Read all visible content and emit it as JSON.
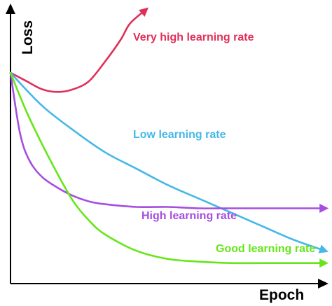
{
  "chart_data": {
    "type": "line",
    "title": "",
    "xlabel": "Epoch",
    "ylabel": "Loss",
    "xlim": [
      0,
      100
    ],
    "ylim": [
      0,
      100
    ],
    "grid": false,
    "legend": "inline labels at curve ends",
    "series": [
      {
        "name": "Very high learning rate",
        "color": "#e0305a",
        "arrow": true,
        "points": [
          [
            0,
            77
          ],
          [
            5,
            74
          ],
          [
            10,
            71
          ],
          [
            15,
            70
          ],
          [
            20,
            71
          ],
          [
            25,
            74
          ],
          [
            30,
            81
          ],
          [
            35,
            89
          ],
          [
            38,
            95
          ],
          [
            43,
            100
          ]
        ]
      },
      {
        "name": "Low learning rate",
        "color": "#45b8e8",
        "arrow": true,
        "points": [
          [
            0,
            77
          ],
          [
            10,
            65
          ],
          [
            20,
            56
          ],
          [
            30,
            48
          ],
          [
            40,
            42
          ],
          [
            50,
            36
          ],
          [
            60,
            31
          ],
          [
            70,
            26
          ],
          [
            80,
            21
          ],
          [
            90,
            16
          ],
          [
            100,
            12
          ]
        ]
      },
      {
        "name": "High learning rate",
        "color": "#a54ee0",
        "arrow": true,
        "points": [
          [
            0,
            77
          ],
          [
            3,
            55
          ],
          [
            6,
            45
          ],
          [
            10,
            39
          ],
          [
            15,
            35
          ],
          [
            20,
            32
          ],
          [
            25,
            30
          ],
          [
            30,
            29
          ],
          [
            40,
            28
          ],
          [
            50,
            28
          ],
          [
            60,
            27.5
          ],
          [
            70,
            27.5
          ],
          [
            80,
            27.5
          ],
          [
            90,
            27.5
          ],
          [
            100,
            27.5
          ]
        ]
      },
      {
        "name": "Good learning rate",
        "color": "#66e619",
        "arrow": true,
        "points": [
          [
            0,
            77
          ],
          [
            5,
            63
          ],
          [
            10,
            51
          ],
          [
            15,
            40
          ],
          [
            20,
            30
          ],
          [
            25,
            23
          ],
          [
            30,
            18
          ],
          [
            40,
            12
          ],
          [
            50,
            9
          ],
          [
            60,
            8
          ],
          [
            70,
            7.5
          ],
          [
            80,
            7.5
          ],
          [
            90,
            7.5
          ],
          [
            100,
            7.5
          ]
        ]
      }
    ]
  }
}
